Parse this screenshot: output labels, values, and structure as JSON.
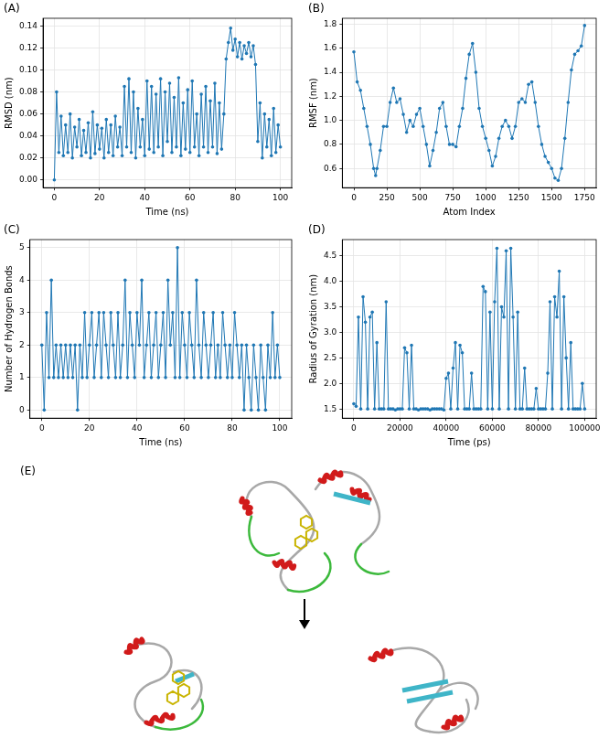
{
  "chart_data": [
    {
      "panel": "(A)",
      "type": "line",
      "x_label": "Time (ns)",
      "y_label": "RMSD (nm)",
      "color": "#1f77b4",
      "marker": "circle",
      "line_style": "solid",
      "grid": true,
      "xlim": [
        -5,
        105
      ],
      "xticks": [
        0,
        20,
        40,
        60,
        80,
        100
      ],
      "ylim": [
        -0.007,
        0.147
      ],
      "yticks": [
        {
          "value": 0,
          "label": "0.00"
        },
        {
          "value": 0.02,
          "label": "0.02"
        },
        {
          "value": 0.04,
          "label": "0.04"
        },
        {
          "value": 0.06,
          "label": "0.06"
        },
        {
          "value": 0.08,
          "label": "0.08"
        },
        {
          "value": 0.1,
          "label": "0.10"
        },
        {
          "value": 0.12,
          "label": "0.12"
        },
        {
          "value": 0.14,
          "label": "0.14"
        }
      ],
      "x": [
        0,
        1,
        2,
        3,
        4,
        5,
        6,
        7,
        8,
        9,
        10,
        11,
        12,
        13,
        14,
        15,
        16,
        17,
        18,
        19,
        20,
        21,
        22,
        23,
        24,
        25,
        26,
        27,
        28,
        29,
        30,
        31,
        32,
        33,
        34,
        35,
        36,
        37,
        38,
        39,
        40,
        41,
        42,
        43,
        44,
        45,
        46,
        47,
        48,
        49,
        50,
        51,
        52,
        53,
        54,
        55,
        56,
        57,
        58,
        59,
        60,
        61,
        62,
        63,
        64,
        65,
        66,
        67,
        68,
        69,
        70,
        71,
        72,
        73,
        74,
        75,
        76,
        77,
        78,
        79,
        80,
        81,
        82,
        83,
        84,
        85,
        86,
        87,
        88,
        89,
        90,
        91,
        92,
        93,
        94,
        95,
        96,
        97,
        98,
        99,
        100
      ],
      "values": [
        0.0,
        0.08,
        0.025,
        0.058,
        0.022,
        0.05,
        0.025,
        0.06,
        0.02,
        0.048,
        0.03,
        0.055,
        0.022,
        0.045,
        0.025,
        0.052,
        0.02,
        0.062,
        0.024,
        0.05,
        0.028,
        0.047,
        0.02,
        0.055,
        0.025,
        0.05,
        0.022,
        0.058,
        0.03,
        0.048,
        0.022,
        0.085,
        0.03,
        0.092,
        0.025,
        0.08,
        0.02,
        0.065,
        0.03,
        0.055,
        0.022,
        0.09,
        0.028,
        0.085,
        0.025,
        0.078,
        0.03,
        0.092,
        0.022,
        0.08,
        0.035,
        0.088,
        0.025,
        0.075,
        0.03,
        0.093,
        0.022,
        0.07,
        0.028,
        0.082,
        0.025,
        0.09,
        0.03,
        0.06,
        0.022,
        0.078,
        0.03,
        0.085,
        0.025,
        0.072,
        0.03,
        0.088,
        0.024,
        0.07,
        0.028,
        0.06,
        0.11,
        0.125,
        0.138,
        0.118,
        0.128,
        0.112,
        0.125,
        0.11,
        0.122,
        0.115,
        0.125,
        0.112,
        0.122,
        0.105,
        0.035,
        0.07,
        0.02,
        0.06,
        0.03,
        0.055,
        0.022,
        0.065,
        0.025,
        0.05,
        0.03
      ]
    },
    {
      "panel": "(B)",
      "type": "line",
      "x_label": "Atom Index",
      "y_label": "RMSF (nm)",
      "color": "#1f77b4",
      "marker": "circle",
      "line_style": "solid",
      "grid": true,
      "xlim": [
        -88,
        1838
      ],
      "xticks": [
        0,
        250,
        500,
        750,
        1000,
        1250,
        1500,
        1750
      ],
      "ylim": [
        0.44,
        1.85
      ],
      "yticks": [
        0.6,
        0.8,
        {
          "value": 1,
          "label": "1.0"
        },
        1.2,
        1.4,
        1.6,
        1.8
      ],
      "x": [
        0,
        25,
        50,
        75,
        100,
        125,
        150,
        165,
        175,
        200,
        225,
        250,
        275,
        300,
        325,
        350,
        375,
        400,
        425,
        450,
        475,
        500,
        525,
        550,
        575,
        600,
        625,
        650,
        675,
        700,
        725,
        750,
        775,
        800,
        825,
        850,
        875,
        900,
        925,
        950,
        975,
        1000,
        1025,
        1050,
        1075,
        1100,
        1125,
        1150,
        1175,
        1200,
        1225,
        1250,
        1275,
        1300,
        1325,
        1350,
        1375,
        1400,
        1425,
        1450,
        1475,
        1500,
        1525,
        1550,
        1575,
        1600,
        1625,
        1650,
        1675,
        1700,
        1725,
        1750
      ],
      "values": [
        1.57,
        1.32,
        1.25,
        1.1,
        0.95,
        0.8,
        0.6,
        0.54,
        0.6,
        0.75,
        0.95,
        0.95,
        1.15,
        1.27,
        1.15,
        1.18,
        1.05,
        0.9,
        1.0,
        0.95,
        1.05,
        1.1,
        0.95,
        0.8,
        0.62,
        0.75,
        0.9,
        1.1,
        1.15,
        0.95,
        0.8,
        0.8,
        0.78,
        0.95,
        1.1,
        1.35,
        1.55,
        1.64,
        1.4,
        1.1,
        0.95,
        0.85,
        0.75,
        0.62,
        0.7,
        0.85,
        0.95,
        1.0,
        0.95,
        0.85,
        0.95,
        1.15,
        1.18,
        1.15,
        1.3,
        1.32,
        1.15,
        0.95,
        0.8,
        0.7,
        0.65,
        0.6,
        0.52,
        0.5,
        0.6,
        0.85,
        1.15,
        1.42,
        1.55,
        1.58,
        1.62,
        1.79
      ]
    },
    {
      "panel": "(C)",
      "type": "line",
      "x_label": "Time (ns)",
      "y_label": "Number of Hydrogen Bonds",
      "color": "#1f77b4",
      "marker": "circle",
      "line_style": "solid",
      "grid": true,
      "xlim": [
        -5,
        105
      ],
      "xticks": [
        0,
        20,
        40,
        60,
        80,
        100
      ],
      "ylim": [
        -0.25,
        5.25
      ],
      "yticks": [
        0,
        1,
        2,
        3,
        4,
        5
      ],
      "x": [
        0,
        1,
        2,
        3,
        4,
        5,
        6,
        7,
        8,
        9,
        10,
        11,
        12,
        13,
        14,
        15,
        16,
        17,
        18,
        19,
        20,
        21,
        22,
        23,
        24,
        25,
        26,
        27,
        28,
        29,
        30,
        31,
        32,
        33,
        34,
        35,
        36,
        37,
        38,
        39,
        40,
        41,
        42,
        43,
        44,
        45,
        46,
        47,
        48,
        49,
        50,
        51,
        52,
        53,
        54,
        55,
        56,
        57,
        58,
        59,
        60,
        61,
        62,
        63,
        64,
        65,
        66,
        67,
        68,
        69,
        70,
        71,
        72,
        73,
        74,
        75,
        76,
        77,
        78,
        79,
        80,
        81,
        82,
        83,
        84,
        85,
        86,
        87,
        88,
        89,
        90,
        91,
        92,
        93,
        94,
        95,
        96,
        97,
        98,
        99,
        100
      ],
      "values": [
        2,
        0,
        3,
        1,
        4,
        1,
        2,
        1,
        2,
        1,
        2,
        1,
        2,
        1,
        2,
        0,
        2,
        1,
        3,
        1,
        2,
        3,
        1,
        2,
        3,
        1,
        3,
        2,
        1,
        3,
        2,
        1,
        3,
        1,
        2,
        4,
        1,
        3,
        2,
        1,
        3,
        2,
        4,
        1,
        2,
        3,
        1,
        2,
        3,
        1,
        2,
        3,
        1,
        4,
        2,
        3,
        1,
        5,
        1,
        3,
        2,
        1,
        3,
        2,
        1,
        4,
        2,
        1,
        3,
        2,
        1,
        2,
        3,
        1,
        2,
        1,
        3,
        2,
        1,
        2,
        1,
        3,
        2,
        1,
        2,
        0,
        2,
        1,
        0,
        2,
        1,
        0,
        2,
        1,
        0,
        2,
        1,
        3,
        1,
        2,
        1
      ]
    },
    {
      "panel": "(D)",
      "type": "line",
      "x_label": "Time (ps)",
      "y_label": "Radius of Gyration (nm)",
      "color": "#1f77b4",
      "marker": "circle",
      "line_style": "solid",
      "grid": true,
      "xlim": [
        -5000,
        105000
      ],
      "xticks": [
        0,
        20000,
        40000,
        60000,
        80000,
        100000
      ],
      "ylim": [
        1.32,
        4.82
      ],
      "yticks": [
        1.5,
        {
          "value": 2,
          "label": "2.0"
        },
        2.5,
        {
          "value": 3,
          "label": "3.0"
        },
        3.5,
        {
          "value": 4,
          "label": "4.0"
        },
        4.5
      ],
      "x": [
        0,
        1000,
        2000,
        3000,
        4000,
        5000,
        6000,
        7000,
        8000,
        9000,
        10000,
        11000,
        12000,
        13000,
        14000,
        15000,
        16000,
        17000,
        18000,
        19000,
        20000,
        21000,
        22000,
        23000,
        24000,
        25000,
        26000,
        27000,
        28000,
        29000,
        30000,
        31000,
        32000,
        33000,
        34000,
        35000,
        36000,
        37000,
        38000,
        39000,
        40000,
        41000,
        42000,
        43000,
        44000,
        45000,
        46000,
        47000,
        48000,
        49000,
        50000,
        51000,
        52000,
        53000,
        54000,
        55000,
        56000,
        57000,
        58000,
        59000,
        60000,
        61000,
        62000,
        63000,
        64000,
        65000,
        66000,
        67000,
        68000,
        69000,
        70000,
        71000,
        72000,
        73000,
        74000,
        75000,
        76000,
        77000,
        78000,
        79000,
        80000,
        81000,
        82000,
        83000,
        84000,
        85000,
        86000,
        87000,
        88000,
        89000,
        90000,
        91000,
        92000,
        93000,
        94000,
        95000,
        96000,
        97000,
        98000,
        99000,
        100000
      ],
      "values": [
        1.6,
        1.55,
        3.3,
        1.5,
        3.7,
        3.2,
        1.5,
        3.3,
        3.4,
        1.5,
        2.8,
        1.5,
        1.5,
        1.5,
        3.6,
        1.5,
        1.5,
        1.5,
        1.48,
        1.5,
        1.5,
        1.5,
        2.7,
        2.6,
        1.5,
        2.75,
        1.5,
        1.5,
        1.48,
        1.5,
        1.5,
        1.5,
        1.5,
        1.48,
        1.5,
        1.5,
        1.5,
        1.5,
        1.5,
        1.48,
        2.1,
        2.2,
        1.5,
        2.3,
        2.8,
        1.5,
        2.75,
        2.6,
        1.5,
        1.5,
        1.5,
        2.2,
        1.5,
        1.5,
        1.5,
        1.5,
        3.9,
        3.8,
        1.5,
        3.4,
        1.5,
        3.6,
        4.65,
        1.5,
        3.5,
        3.3,
        4.6,
        1.5,
        4.65,
        3.3,
        1.5,
        3.4,
        1.5,
        1.5,
        2.3,
        1.5,
        1.5,
        1.5,
        1.5,
        1.9,
        1.5,
        1.5,
        1.5,
        1.5,
        2.2,
        3.6,
        1.5,
        3.7,
        3.3,
        4.2,
        1.5,
        3.7,
        2.5,
        1.5,
        2.8,
        1.5,
        1.5,
        1.5,
        1.5,
        2.0,
        1.5
      ]
    }
  ],
  "panel_e": {
    "panel": "(E)"
  }
}
